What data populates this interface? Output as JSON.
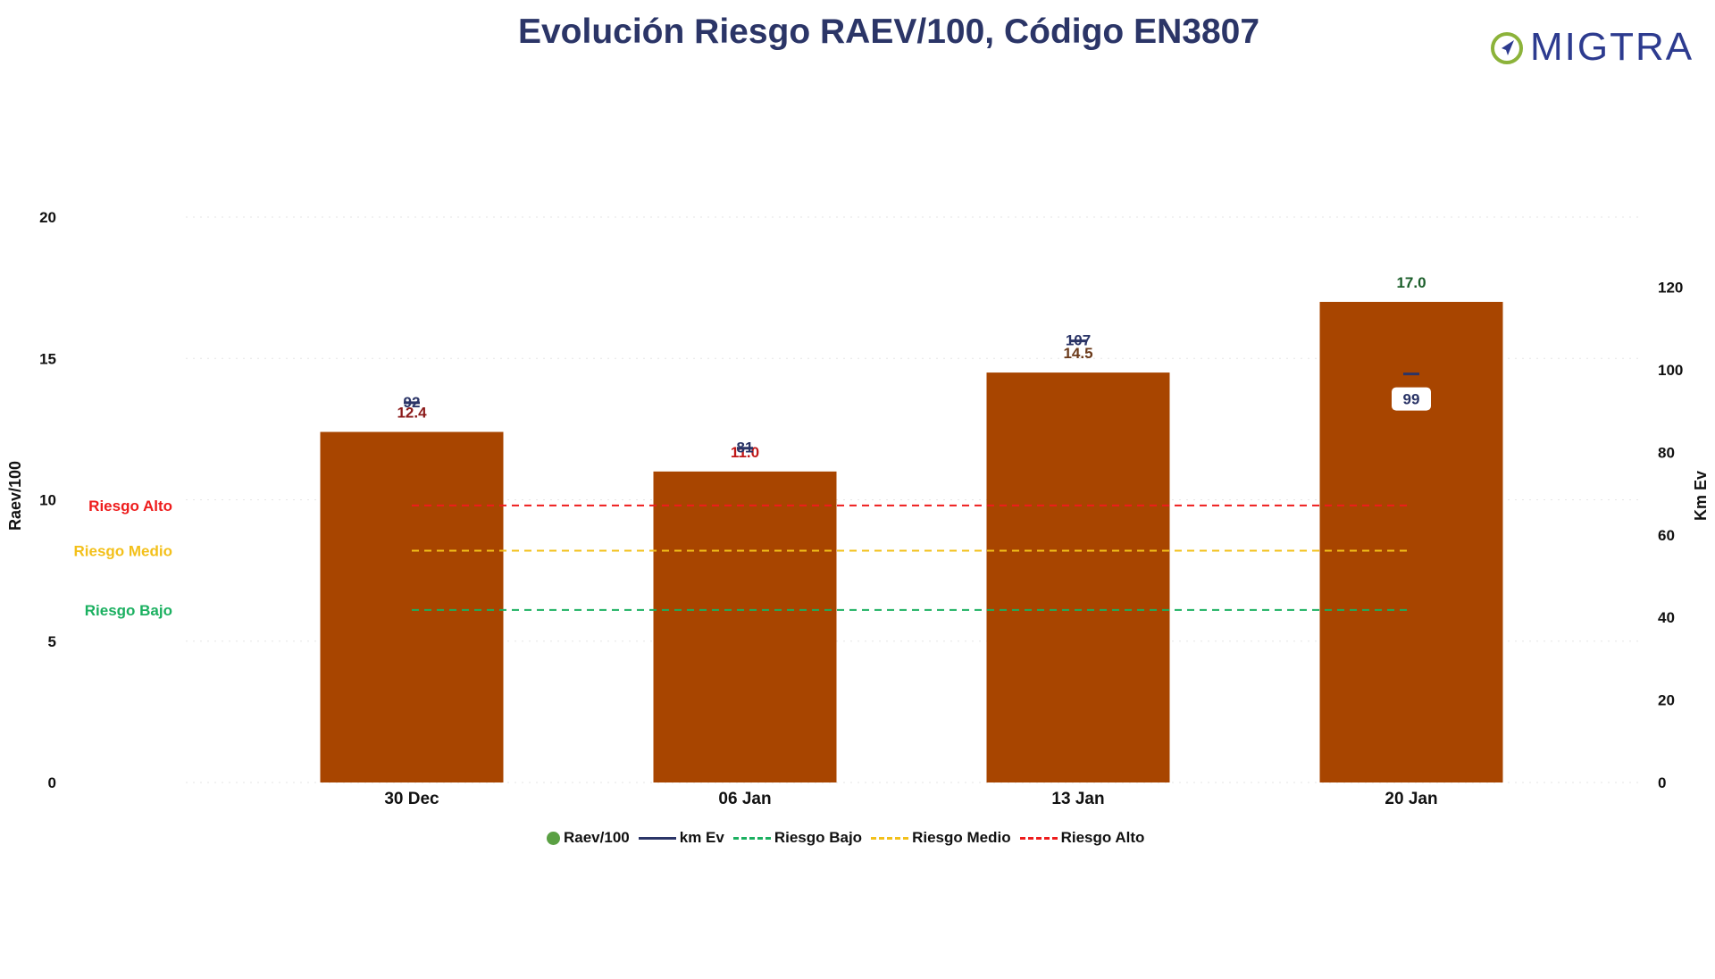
{
  "title": "Evolución Riesgo RAEV/100, Código EN3807",
  "logo": {
    "text": "MIGTRA",
    "accent": "#8cb33a",
    "color": "#2d3b8f"
  },
  "legend": [
    {
      "label": "Raev/100",
      "kind": "dot",
      "color": "#5aa043"
    },
    {
      "label": "km Ev",
      "kind": "line",
      "color": "#2b3567"
    },
    {
      "label": "Riesgo Bajo",
      "kind": "dashed",
      "color": "#1bb060"
    },
    {
      "label": "Riesgo Medio",
      "kind": "dashed",
      "color": "#f3c01a"
    },
    {
      "label": "Riesgo Alto",
      "kind": "dashed",
      "color": "#ee1c1c"
    }
  ],
  "chart_data": {
    "type": "bar",
    "title": "Evolución Riesgo RAEV/100, Código EN3807",
    "categories": [
      "30 Dec",
      "06 Jan",
      "13 Jan",
      "20 Jan"
    ],
    "ylabel": "Raev/100",
    "y2label": "Km Ev",
    "ylim": [
      0,
      20
    ],
    "y2lim": [
      0,
      137
    ],
    "yticks": [
      0,
      5,
      10,
      15,
      20
    ],
    "y2ticks": [
      0,
      20,
      40,
      60,
      80,
      100,
      120
    ],
    "grid": false,
    "legend_position": "bottom-center",
    "bar_color": "#a84500",
    "series": [
      {
        "name": "Raev/100",
        "type": "bar",
        "axis": "left",
        "values": [
          12.4,
          11.0,
          14.5,
          17.0
        ],
        "labels": [
          "12.4",
          "11.0",
          "14.5",
          "17.0"
        ],
        "label_colors": [
          "#8b1a1a",
          "#c01818",
          "#6b3a1a",
          "#1b5e2a"
        ]
      },
      {
        "name": "km Ev",
        "type": "line",
        "axis": "right",
        "values": [
          92,
          81,
          107,
          99
        ],
        "labels": [
          "92",
          "81",
          "107",
          "99"
        ],
        "color": "#2b3567"
      },
      {
        "name": "Riesgo Bajo",
        "type": "hline",
        "axis": "left",
        "value": 6.1,
        "color": "#1bb060"
      },
      {
        "name": "Riesgo Medio",
        "type": "hline",
        "axis": "left",
        "value": 8.2,
        "color": "#f3c01a"
      },
      {
        "name": "Riesgo Alto",
        "type": "hline",
        "axis": "left",
        "value": 9.8,
        "color": "#ee1c1c"
      }
    ],
    "annotations": [
      {
        "text": "Riesgo Alto",
        "color": "#ee1c1c",
        "y": 9.8
      },
      {
        "text": "Riesgo Medio",
        "color": "#f3c01a",
        "y": 8.2
      },
      {
        "text": "Riesgo Bajo",
        "color": "#1bb060",
        "y": 6.1
      }
    ]
  }
}
